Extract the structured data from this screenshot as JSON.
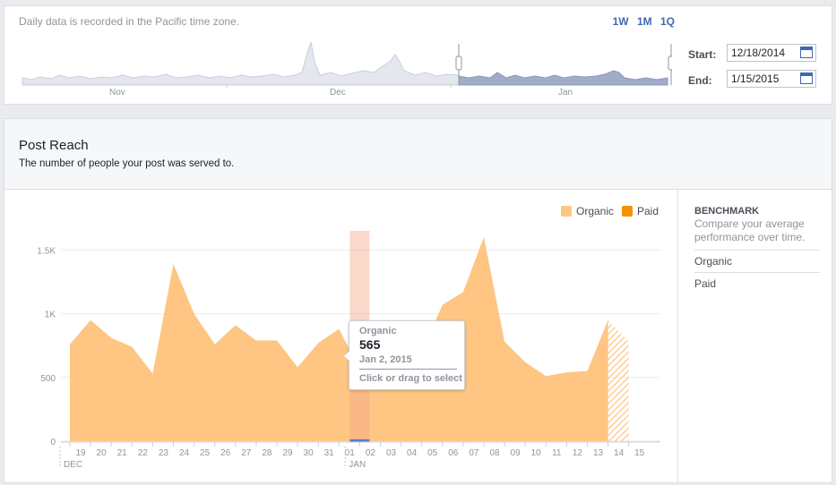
{
  "overview": {
    "timezone_note": "Daily data is recorded in the Pacific time zone.",
    "range_buttons": [
      "1W",
      "1M",
      "1Q"
    ],
    "months": [
      "Nov",
      "Dec",
      "Jan"
    ],
    "start_label": "Start:",
    "start_value": "12/18/2014",
    "end_label": "End:",
    "end_value": "1/15/2015"
  },
  "post_reach": {
    "title": "Post Reach",
    "subtitle": "The number of people your post was served to."
  },
  "legend": [
    {
      "label": "Organic",
      "color": "#fec583"
    },
    {
      "label": "Paid",
      "color": "#f39200"
    }
  ],
  "benchmark": {
    "title": "BENCHMARK",
    "description": "Compare your average performance over time.",
    "options": [
      "Organic",
      "Paid"
    ]
  },
  "tooltip": {
    "series": "Organic",
    "value": "565",
    "date": "Jan 2, 2015",
    "hint": "Click or drag to select"
  },
  "chart_data": {
    "type": "area",
    "x": [
      "19",
      "20",
      "21",
      "22",
      "23",
      "24",
      "25",
      "26",
      "27",
      "28",
      "29",
      "30",
      "31",
      "01",
      "02",
      "03",
      "04",
      "05",
      "06",
      "07",
      "08",
      "09",
      "10",
      "11",
      "12",
      "13",
      "14",
      "15"
    ],
    "month_labels": [
      "DEC",
      "JAN"
    ],
    "y_ticks": [
      "0",
      "500",
      "1K",
      "1.5K"
    ],
    "ylim": [
      0,
      1650
    ],
    "series": [
      {
        "name": "Organic",
        "color": "#fec583",
        "values": [
          760,
          950,
          810,
          740,
          530,
          1390,
          1000,
          760,
          910,
          790,
          790,
          580,
          770,
          880,
          565,
          820,
          640,
          700,
          1070,
          1170,
          1600,
          780,
          620,
          510,
          540,
          550,
          950,
          780
        ]
      },
      {
        "name": "Paid",
        "color": "#f39200",
        "values": [
          0,
          0,
          0,
          0,
          0,
          0,
          0,
          0,
          0,
          0,
          0,
          0,
          0,
          0,
          0,
          0,
          0,
          0,
          0,
          0,
          0,
          0,
          0,
          0,
          0,
          0,
          0,
          0
        ]
      }
    ],
    "highlighted_index": 14,
    "partial_last_point": true,
    "grid": true,
    "legend_position": "top-right"
  }
}
